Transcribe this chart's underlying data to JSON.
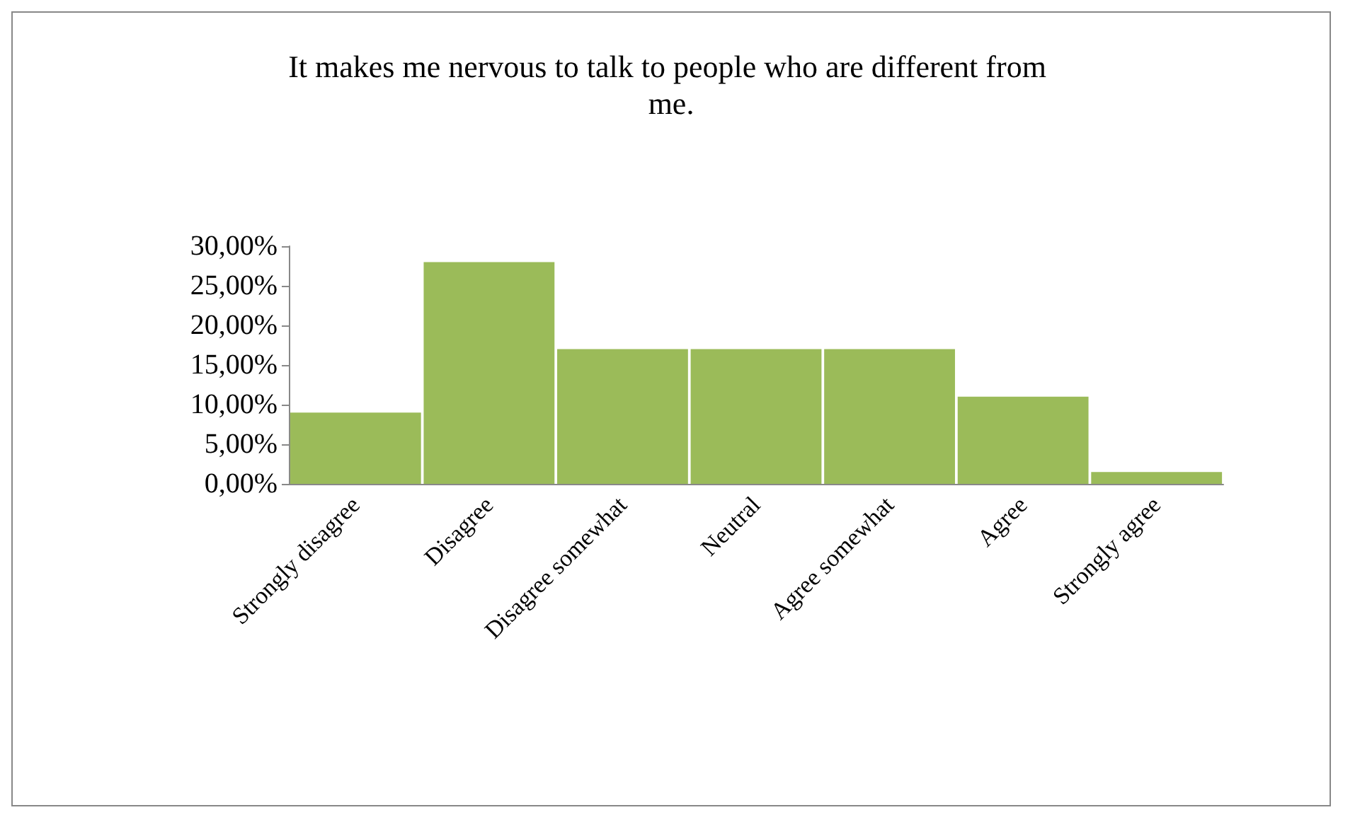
{
  "chart_data": {
    "type": "bar",
    "title": "It makes me nervous to talk to people who are different from me.",
    "categories": [
      "Strongly disagree",
      "Disagree",
      "Disagree somewhat",
      "Neutral",
      "Agree somewhat",
      "Agree",
      "Strongly agree"
    ],
    "values": [
      9,
      28,
      17,
      17,
      17,
      11,
      1.5
    ],
    "color": "#9bbb59",
    "ylim": [
      0,
      30
    ],
    "yticks": [
      {
        "value": 0,
        "label": "0,00%"
      },
      {
        "value": 5,
        "label": "5,00%"
      },
      {
        "value": 10,
        "label": "10,00%"
      },
      {
        "value": 15,
        "label": "15,00%"
      },
      {
        "value": 20,
        "label": "20,00%"
      },
      {
        "value": 25,
        "label": "25,00%"
      },
      {
        "value": 30,
        "label": "30,00%"
      }
    ],
    "grid": false
  }
}
